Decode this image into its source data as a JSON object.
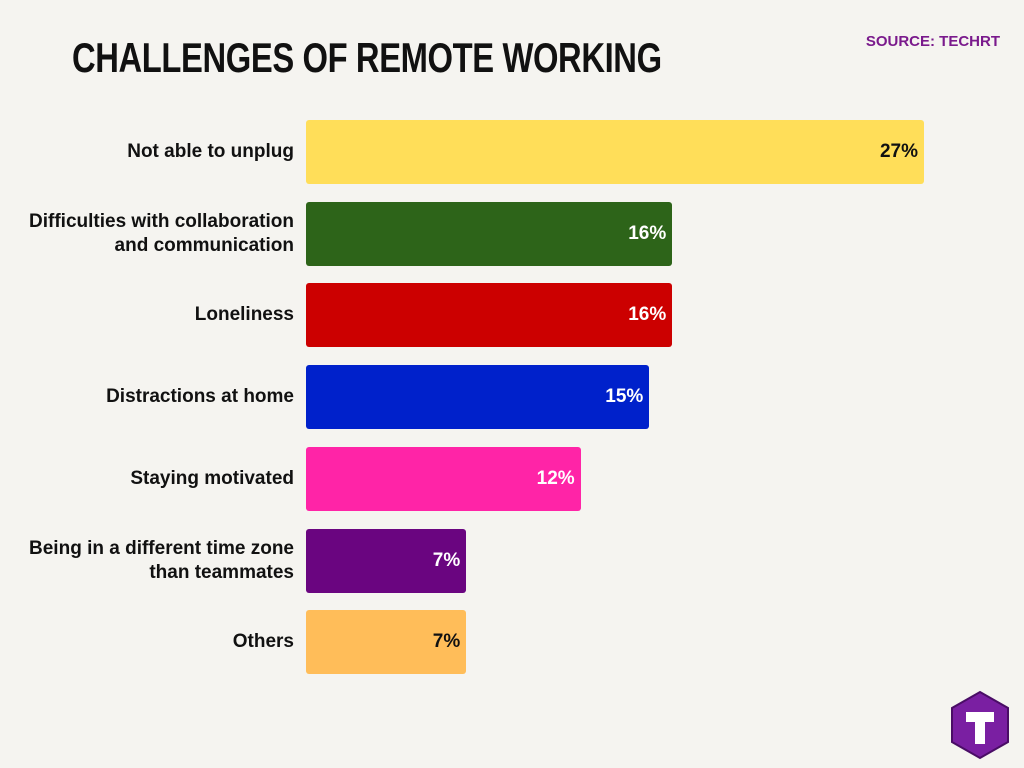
{
  "chart_data": {
    "type": "bar",
    "orientation": "horizontal",
    "title": "CHALLENGES OF REMOTE WORKING",
    "source": "SOURCE: TECHRT",
    "categories": [
      "Not able to unplug",
      "Difficulties with collaboration and communication",
      "Loneliness",
      "Distractions at home",
      "Staying motivated",
      "Being in a different time zone than teammates",
      "Others"
    ],
    "values": [
      27,
      16,
      16,
      15,
      12,
      7,
      7
    ],
    "value_labels": [
      "27%",
      "16%",
      "16%",
      "15%",
      "12%",
      "7%",
      "7%"
    ],
    "colors": [
      "#ffde59",
      "#2d6419",
      "#cc0000",
      "#0021cb",
      "#ff24a7",
      "#6a0580",
      "#ffbd59"
    ]
  }
}
